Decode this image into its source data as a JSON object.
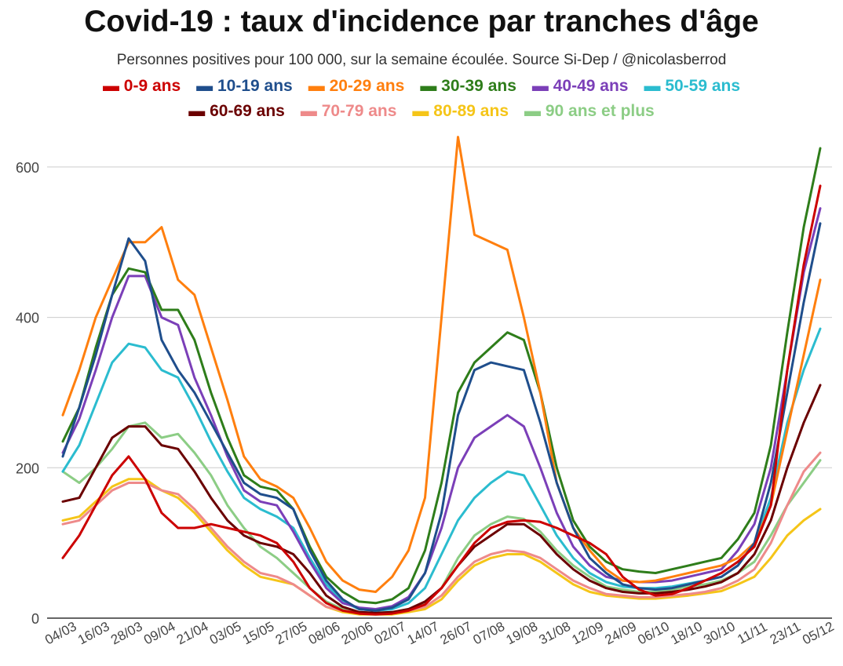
{
  "chart_data": {
    "type": "line",
    "title": "Covid-19 : taux d'incidence par tranches d'âge",
    "subtitle": "Personnes positives pour 100 000, sur la semaine écoulée. Source Si-Dep / @nicolasberrod",
    "xlabel": "",
    "ylabel": "",
    "ylim": [
      0,
      650
    ],
    "yticks": [
      0,
      200,
      400,
      600
    ],
    "grid": true,
    "legend_position": "top",
    "x_tick_labels": [
      "04/03",
      "16/03",
      "28/03",
      "09/04",
      "21/04",
      "03/05",
      "15/05",
      "27/05",
      "08/06",
      "20/06",
      "02/07",
      "14/07",
      "26/07",
      "07/08",
      "19/08",
      "31/08",
      "12/09",
      "24/09",
      "06/10",
      "18/10",
      "30/10",
      "11/11",
      "23/11",
      "05/12"
    ],
    "x": [
      "04/03",
      "10/03",
      "16/03",
      "22/03",
      "28/03",
      "03/04",
      "09/04",
      "15/04",
      "21/04",
      "27/04",
      "03/05",
      "09/05",
      "15/05",
      "21/05",
      "27/05",
      "02/06",
      "08/06",
      "14/06",
      "20/06",
      "26/06",
      "02/07",
      "08/07",
      "14/07",
      "20/07",
      "26/07",
      "01/08",
      "07/08",
      "13/08",
      "19/08",
      "25/08",
      "31/08",
      "06/09",
      "12/09",
      "18/09",
      "24/09",
      "30/09",
      "06/10",
      "12/10",
      "18/10",
      "24/10",
      "30/10",
      "05/11",
      "11/11",
      "17/11",
      "23/11",
      "29/11",
      "05/12"
    ],
    "series": [
      {
        "name": "0-9 ans",
        "color": "#cc0000",
        "values": [
          80,
          110,
          150,
          190,
          215,
          185,
          140,
          120,
          120,
          125,
          120,
          115,
          110,
          100,
          75,
          40,
          20,
          10,
          6,
          5,
          6,
          10,
          18,
          40,
          70,
          100,
          120,
          128,
          130,
          128,
          120,
          110,
          100,
          85,
          55,
          38,
          30,
          32,
          40,
          50,
          60,
          75,
          95,
          150,
          330,
          470,
          575
        ]
      },
      {
        "name": "10-19 ans",
        "color": "#1f4e8c",
        "values": [
          215,
          280,
          350,
          430,
          505,
          475,
          370,
          330,
          300,
          260,
          220,
          180,
          165,
          160,
          145,
          90,
          50,
          25,
          12,
          10,
          14,
          25,
          60,
          140,
          270,
          330,
          340,
          335,
          330,
          260,
          180,
          120,
          80,
          60,
          45,
          40,
          38,
          40,
          45,
          50,
          55,
          70,
          100,
          180,
          300,
          420,
          525
        ]
      },
      {
        "name": "20-29 ans",
        "color": "#ff7f0e",
        "values": [
          270,
          330,
          400,
          450,
          500,
          500,
          520,
          450,
          430,
          360,
          290,
          215,
          185,
          175,
          160,
          120,
          75,
          50,
          38,
          35,
          55,
          90,
          160,
          400,
          640,
          510,
          500,
          490,
          400,
          300,
          180,
          120,
          90,
          65,
          50,
          48,
          50,
          55,
          60,
          65,
          70,
          80,
          100,
          150,
          250,
          350,
          450
        ]
      },
      {
        "name": "30-39 ans",
        "color": "#2e7d1a",
        "values": [
          235,
          280,
          360,
          430,
          465,
          460,
          410,
          410,
          370,
          300,
          240,
          190,
          175,
          170,
          145,
          95,
          55,
          35,
          22,
          20,
          25,
          40,
          90,
          180,
          300,
          340,
          360,
          380,
          370,
          300,
          200,
          130,
          95,
          75,
          65,
          62,
          60,
          65,
          70,
          75,
          80,
          105,
          140,
          230,
          380,
          520,
          625
        ]
      },
      {
        "name": "40-49 ans",
        "color": "#7b3fb8",
        "values": [
          220,
          265,
          330,
          400,
          455,
          455,
          400,
          390,
          320,
          270,
          215,
          170,
          155,
          150,
          115,
          75,
          40,
          20,
          14,
          12,
          16,
          28,
          60,
          120,
          200,
          240,
          255,
          270,
          255,
          200,
          140,
          95,
          70,
          55,
          50,
          48,
          48,
          50,
          55,
          60,
          65,
          90,
          125,
          200,
          330,
          460,
          545
        ]
      },
      {
        "name": "50-59 ans",
        "color": "#2bbccf",
        "values": [
          195,
          230,
          285,
          340,
          365,
          360,
          330,
          320,
          280,
          235,
          195,
          160,
          145,
          135,
          120,
          80,
          45,
          22,
          12,
          10,
          12,
          20,
          40,
          85,
          130,
          160,
          180,
          195,
          190,
          150,
          110,
          80,
          60,
          48,
          42,
          40,
          40,
          42,
          46,
          50,
          55,
          70,
          100,
          160,
          260,
          330,
          385
        ]
      },
      {
        "name": "60-69 ans",
        "color": "#6b0000",
        "values": [
          155,
          160,
          200,
          240,
          255,
          255,
          230,
          225,
          195,
          160,
          130,
          110,
          100,
          95,
          85,
          60,
          30,
          15,
          8,
          7,
          8,
          12,
          22,
          40,
          70,
          95,
          110,
          125,
          125,
          110,
          85,
          65,
          50,
          40,
          35,
          33,
          33,
          35,
          38,
          42,
          48,
          60,
          85,
          130,
          200,
          260,
          310
        ]
      },
      {
        "name": "70-79 ans",
        "color": "#ee8a8a",
        "values": [
          125,
          130,
          150,
          170,
          180,
          180,
          170,
          165,
          145,
          120,
          95,
          75,
          60,
          55,
          45,
          30,
          15,
          10,
          7,
          6,
          7,
          10,
          15,
          30,
          55,
          75,
          85,
          90,
          88,
          80,
          65,
          50,
          40,
          32,
          30,
          28,
          28,
          30,
          32,
          35,
          40,
          50,
          65,
          100,
          150,
          195,
          220
        ]
      },
      {
        "name": "80-89 ans",
        "color": "#f5c518",
        "values": [
          130,
          135,
          155,
          175,
          185,
          185,
          170,
          160,
          140,
          115,
          90,
          70,
          55,
          50,
          45,
          30,
          15,
          8,
          5,
          5,
          5,
          8,
          12,
          25,
          50,
          70,
          80,
          85,
          85,
          75,
          60,
          45,
          35,
          30,
          28,
          26,
          26,
          28,
          30,
          33,
          36,
          45,
          55,
          80,
          110,
          130,
          145
        ]
      },
      {
        "name": "90 ans et plus",
        "color": "#8ccd85",
        "values": [
          195,
          180,
          200,
          225,
          255,
          260,
          240,
          245,
          220,
          190,
          150,
          120,
          95,
          80,
          60,
          40,
          22,
          12,
          8,
          7,
          8,
          12,
          20,
          40,
          80,
          110,
          125,
          135,
          132,
          115,
          90,
          70,
          55,
          42,
          38,
          35,
          35,
          38,
          42,
          45,
          50,
          60,
          75,
          110,
          150,
          180,
          210
        ]
      }
    ]
  }
}
